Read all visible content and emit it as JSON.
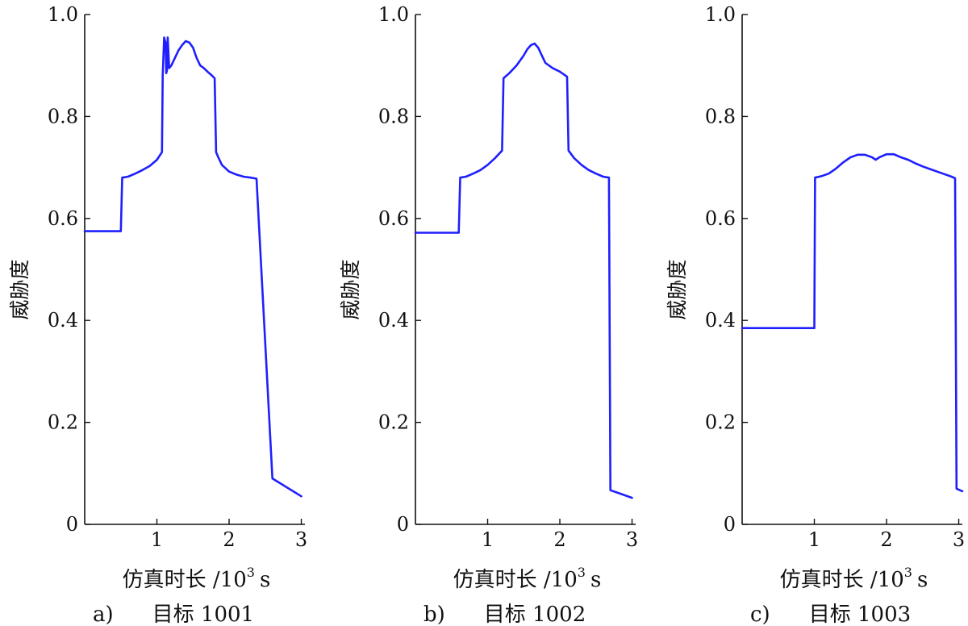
{
  "figure": {
    "background": "#ffffff",
    "axis_color": "#111111",
    "line_color": "#1f1fff"
  },
  "chart_data": [
    {
      "type": "line",
      "panel_label": "a)",
      "caption": "目标 1001",
      "xlabel_text": "仿真时长 /10",
      "xlabel_exp": "3",
      "xlabel_unit": "s",
      "ylabel": "威胁度",
      "xlim": [
        0,
        3.05
      ],
      "ylim": [
        0,
        1.0
      ],
      "xticks": [
        1,
        2,
        3
      ],
      "xtick_labels": [
        "1",
        "2",
        "3"
      ],
      "yticks": [
        0,
        0.2,
        0.4,
        0.6,
        0.8,
        1.0
      ],
      "ytick_labels": [
        "0",
        "0.2",
        "0.4",
        "0.6",
        "0.8",
        "1.0"
      ],
      "series": [
        {
          "x": [
            0,
            0.5,
            0.52,
            0.6,
            0.7,
            0.8,
            0.9,
            1.0,
            1.07,
            1.08,
            1.1,
            1.12,
            1.13,
            1.14,
            1.15,
            1.17,
            1.2,
            1.25,
            1.3,
            1.35,
            1.4,
            1.45,
            1.5,
            1.55,
            1.6,
            1.65,
            1.7,
            1.75,
            1.8,
            1.82,
            1.85,
            1.9,
            2.0,
            2.1,
            2.2,
            2.3,
            2.38,
            2.6,
            3.0
          ],
          "y": [
            0.575,
            0.575,
            0.68,
            0.682,
            0.688,
            0.695,
            0.703,
            0.715,
            0.73,
            0.88,
            0.955,
            0.945,
            0.885,
            0.89,
            0.955,
            0.895,
            0.9,
            0.915,
            0.93,
            0.94,
            0.948,
            0.945,
            0.935,
            0.915,
            0.9,
            0.895,
            0.888,
            0.882,
            0.875,
            0.73,
            0.72,
            0.705,
            0.692,
            0.686,
            0.682,
            0.68,
            0.678,
            0.09,
            0.055
          ]
        }
      ]
    },
    {
      "type": "line",
      "panel_label": "b)",
      "caption": "目标 1002",
      "xlabel_text": "仿真时长 /10",
      "xlabel_exp": "3",
      "xlabel_unit": "s",
      "ylabel": "威胁度",
      "xlim": [
        0,
        3.05
      ],
      "ylim": [
        0,
        1.0
      ],
      "xticks": [
        1,
        2,
        3
      ],
      "xtick_labels": [
        "1",
        "2",
        "3"
      ],
      "yticks": [
        0,
        0.2,
        0.4,
        0.6,
        0.8,
        1.0
      ],
      "ytick_labels": [
        "0",
        "0.2",
        "0.4",
        "0.6",
        "0.8",
        "1.0"
      ],
      "series": [
        {
          "x": [
            0,
            0.6,
            0.62,
            0.7,
            0.8,
            0.9,
            1.0,
            1.1,
            1.2,
            1.22,
            1.3,
            1.4,
            1.5,
            1.55,
            1.6,
            1.65,
            1.7,
            1.75,
            1.8,
            1.9,
            2.0,
            2.1,
            2.12,
            2.2,
            2.3,
            2.4,
            2.5,
            2.6,
            2.68,
            2.7,
            3.0
          ],
          "y": [
            0.572,
            0.572,
            0.68,
            0.682,
            0.688,
            0.695,
            0.705,
            0.718,
            0.733,
            0.875,
            0.885,
            0.9,
            0.92,
            0.932,
            0.94,
            0.943,
            0.935,
            0.92,
            0.905,
            0.895,
            0.888,
            0.878,
            0.733,
            0.718,
            0.705,
            0.695,
            0.688,
            0.682,
            0.68,
            0.067,
            0.052
          ]
        }
      ]
    },
    {
      "type": "line",
      "panel_label": "c)",
      "caption": "目标 1003",
      "xlabel_text": "仿真时长 /10",
      "xlabel_exp": "3",
      "xlabel_unit": "s",
      "ylabel": "威胁度",
      "xlim": [
        0,
        3.05
      ],
      "ylim": [
        0,
        1.0
      ],
      "xticks": [
        1,
        2,
        3
      ],
      "xtick_labels": [
        "1",
        "2",
        "3"
      ],
      "yticks": [
        0,
        0.2,
        0.4,
        0.6,
        0.8,
        1.0
      ],
      "ytick_labels": [
        "0",
        "0.2",
        "0.4",
        "0.6",
        "0.8",
        "1.0"
      ],
      "series": [
        {
          "x": [
            0,
            1.0,
            1.01,
            1.1,
            1.2,
            1.3,
            1.4,
            1.5,
            1.6,
            1.7,
            1.8,
            1.85,
            1.9,
            2.0,
            2.1,
            2.2,
            2.3,
            2.4,
            2.5,
            2.6,
            2.7,
            2.8,
            2.9,
            2.95,
            2.97,
            3.05
          ],
          "y": [
            0.385,
            0.385,
            0.68,
            0.683,
            0.688,
            0.698,
            0.71,
            0.72,
            0.725,
            0.725,
            0.72,
            0.715,
            0.72,
            0.726,
            0.726,
            0.72,
            0.715,
            0.708,
            0.702,
            0.697,
            0.692,
            0.687,
            0.682,
            0.679,
            0.07,
            0.065
          ]
        }
      ]
    }
  ]
}
